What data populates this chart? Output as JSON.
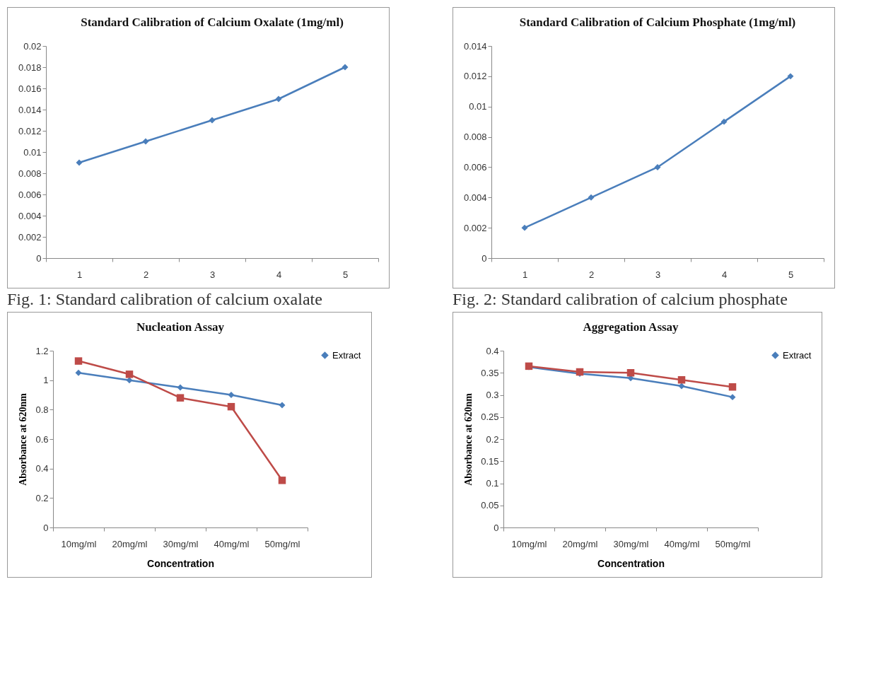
{
  "chart_data": [
    {
      "type": "line",
      "title": "Standard Calibration of Calcium Oxalate (1mg/ml)",
      "categories": [
        "1",
        "2",
        "3",
        "4",
        "5"
      ],
      "series": [
        {
          "color": "#4a7ebb",
          "values": [
            0.009,
            0.011,
            0.013,
            0.015,
            0.018
          ]
        }
      ],
      "ylim": [
        0,
        0.02
      ],
      "yticks": [
        0,
        0.002,
        0.004,
        0.006,
        0.008,
        0.01,
        0.012,
        0.014,
        0.016,
        0.018,
        0.02
      ],
      "marker": "diamond",
      "annotations": [
        "Fig. 1: Standard calibration of calcium oxalate"
      ]
    },
    {
      "type": "line",
      "title": "Standard Calibration of Calcium  Phosphate (1mg/ml)",
      "categories": [
        "1",
        "2",
        "3",
        "4",
        "5"
      ],
      "series": [
        {
          "color": "#4a7ebb",
          "values": [
            0.002,
            0.004,
            0.006,
            0.009,
            0.012
          ]
        }
      ],
      "ylim": [
        0,
        0.014
      ],
      "yticks": [
        0,
        0.002,
        0.004,
        0.006,
        0.008,
        0.01,
        0.012,
        0.014
      ],
      "marker": "diamond",
      "annotations": [
        "Fig. 2: Standard calibration of calcium phosphate"
      ]
    },
    {
      "type": "line",
      "title": "Nucleation Assay",
      "xlabel": "Concentration",
      "ylabel": "Absorbance at 620nm",
      "categories": [
        "10mg/ml",
        "20mg/ml",
        "30mg/ml",
        "40mg/ml",
        "50mg/ml"
      ],
      "series": [
        {
          "name": "Extract",
          "color": "#4a7ebb",
          "marker": "diamond",
          "values": [
            1.05,
            1.0,
            0.95,
            0.9,
            0.83
          ]
        },
        {
          "color": "#be4b48",
          "marker": "square",
          "values": [
            1.13,
            1.04,
            0.88,
            0.82,
            0.32
          ]
        }
      ],
      "ylim": [
        0,
        1.2
      ],
      "yticks": [
        0,
        0.2,
        0.4,
        0.6,
        0.8,
        1,
        1.2
      ],
      "legend": "right"
    },
    {
      "type": "line",
      "title": "Aggregation Assay",
      "xlabel": "Concentration",
      "ylabel": "Absorbance at 620nm",
      "categories": [
        "10mg/ml",
        "20mg/ml",
        "30mg/ml",
        "40mg/ml",
        "50mg/ml"
      ],
      "series": [
        {
          "name": "Extract",
          "color": "#4a7ebb",
          "marker": "diamond",
          "values": [
            0.363,
            0.348,
            0.338,
            0.32,
            0.295
          ]
        },
        {
          "color": "#be4b48",
          "marker": "square",
          "values": [
            0.365,
            0.352,
            0.35,
            0.334,
            0.318
          ]
        }
      ],
      "ylim": [
        0,
        0.4
      ],
      "yticks": [
        0,
        0.05,
        0.1,
        0.15,
        0.2,
        0.25,
        0.3,
        0.35,
        0.4
      ],
      "legend": "right"
    }
  ]
}
